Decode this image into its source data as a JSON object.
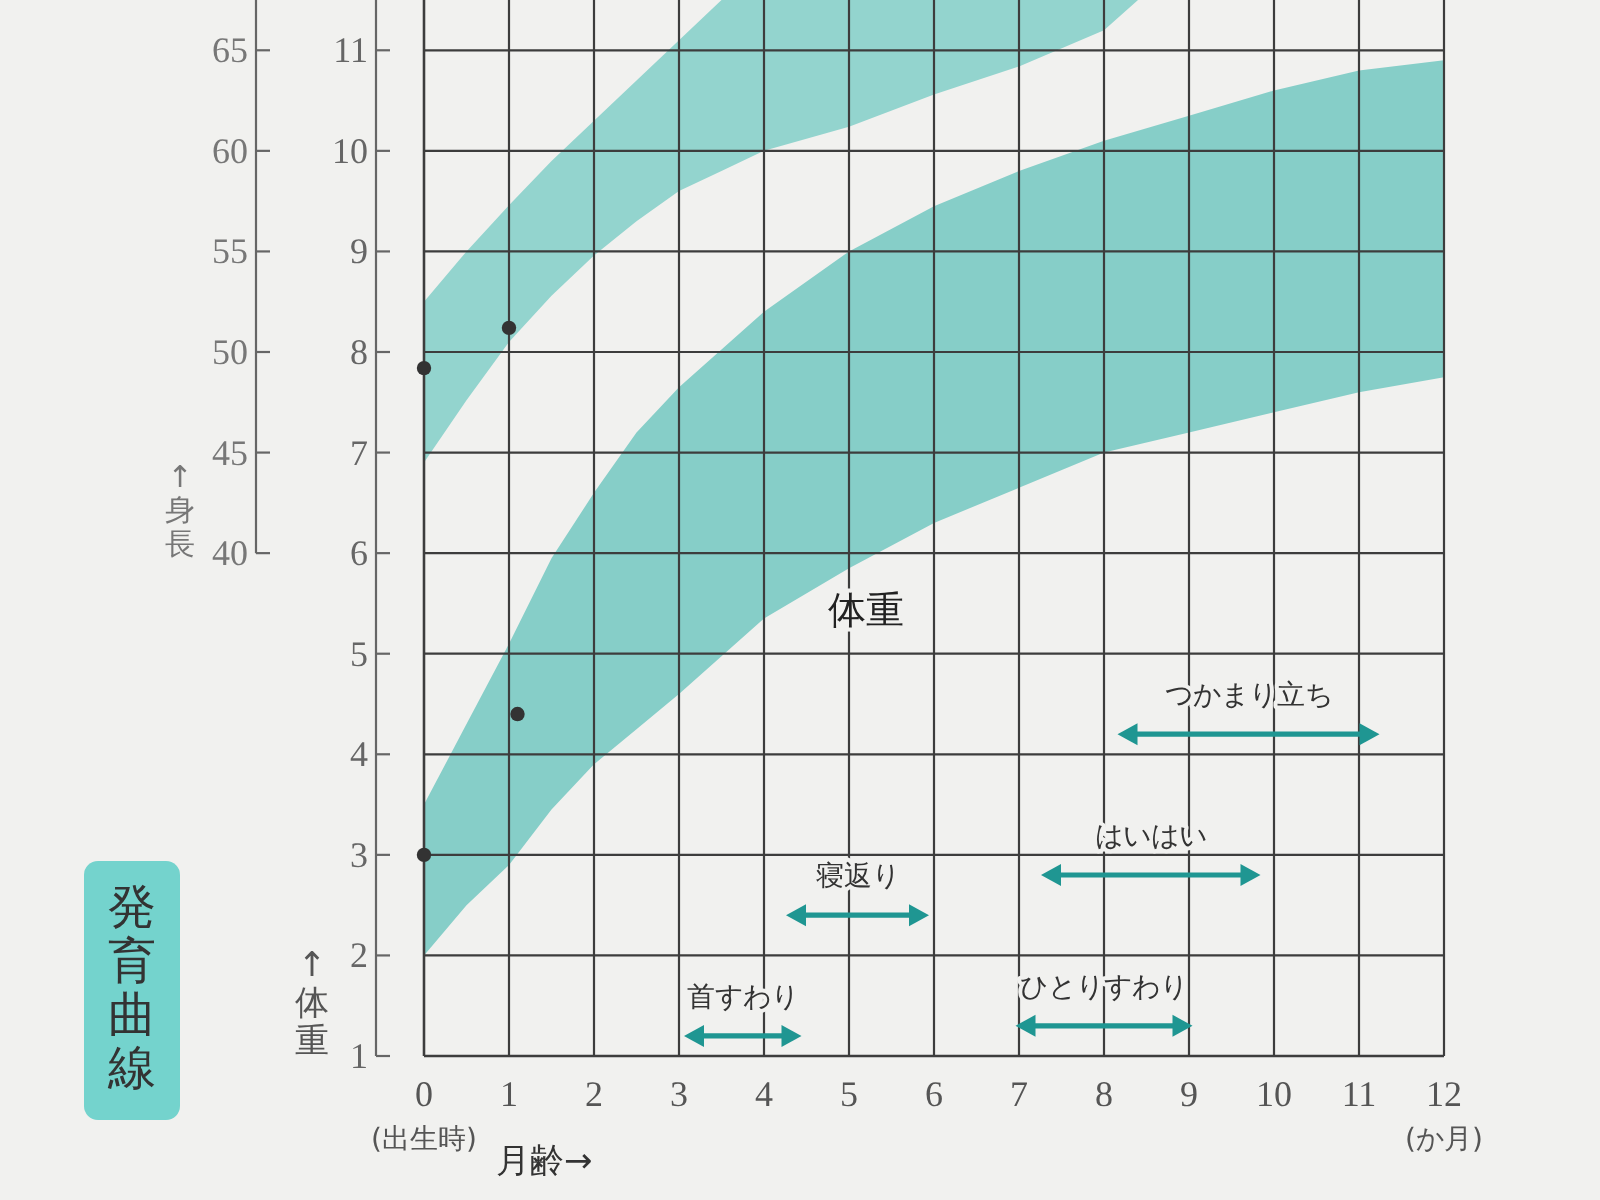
{
  "chart_data": {
    "type": "area",
    "title": "発育曲線",
    "xlabel": "月齢→",
    "ylabel": "↑体重",
    "y2label": "↑身長",
    "xlim": [
      0,
      12
    ],
    "xticks": [
      {
        "value": 0,
        "label": "0\n(出生時)"
      },
      1,
      2,
      3,
      4,
      5,
      6,
      7,
      8,
      9,
      10,
      11,
      {
        "value": 12,
        "label": "12\n(か月)"
      }
    ],
    "ylim": [
      1,
      11.5
    ],
    "yticks": [
      1,
      2,
      3,
      4,
      5,
      6,
      7,
      8,
      9,
      10,
      11
    ],
    "y2lim": [
      15,
      67.5
    ],
    "y2ticks": [
      40,
      45,
      50,
      55,
      60,
      65
    ],
    "grid": true,
    "annotations": [
      "体重"
    ],
    "series": [
      {
        "axis": "y2",
        "color": "#93d4ce",
        "x": [
          0,
          0.5,
          1,
          1.5,
          2,
          2.5,
          3,
          3.5,
          4,
          5,
          6,
          7,
          8,
          8.4
        ],
        "values": [
          null,
          null,
          null,
          null,
          null,
          null,
          null,
          null,
          null,
          null,
          null,
          null,
          null,
          null
        ],
        "lower": [
          44.5,
          47.6,
          50.5,
          52.8,
          54.8,
          56.5,
          58,
          59,
          60,
          61.2,
          62.8,
          64.2,
          66,
          67.5
        ],
        "upper": [
          52.5,
          55,
          57.3,
          59.5,
          61.5,
          63.5,
          65.5,
          67.5,
          67.5,
          67.5,
          67.5,
          67.5,
          67.5,
          67.5
        ]
      },
      {
        "color": "#86cec8",
        "x": [
          0,
          0.5,
          1,
          1.5,
          2,
          2.5,
          3,
          4,
          5,
          6,
          7,
          8,
          9,
          10,
          11,
          12
        ],
        "values": [
          null,
          null,
          null,
          null,
          null,
          null,
          null,
          null,
          null,
          null,
          null,
          null,
          null,
          null,
          null,
          null
        ],
        "lower": [
          2.0,
          2.5,
          2.9,
          3.45,
          3.9,
          4.25,
          4.6,
          5.35,
          5.85,
          6.3,
          6.65,
          7.0,
          7.2,
          7.4,
          7.6,
          7.75
        ],
        "upper": [
          3.5,
          4.3,
          5.1,
          5.95,
          6.6,
          7.2,
          7.65,
          8.4,
          9.0,
          9.45,
          9.8,
          10.1,
          10.35,
          10.6,
          10.8,
          10.9
        ]
      },
      {
        "type": "scatter",
        "color": "#333333",
        "marker": "circle",
        "x": [
          0,
          1.1
        ],
        "values": [
          3.0,
          4.4
        ]
      },
      {
        "type": "scatter",
        "axis": "y2",
        "color": "#333333",
        "marker": "circle",
        "x": [
          0,
          1.0
        ],
        "values": [
          49.2,
          51.2
        ]
      },
      {
        "type": "line",
        "name": "首すわり",
        "color": "#1f9692",
        "marker": "triangle",
        "x": [
          3.2,
          4.3
        ],
        "values": [
          1.2,
          1.2
        ]
      },
      {
        "type": "line",
        "name": "寝返り",
        "color": "#1f9692",
        "marker": "triangle",
        "x": [
          4.4,
          5.8
        ],
        "values": [
          2.4,
          2.4
        ]
      },
      {
        "type": "line",
        "name": "ひとりすわり",
        "color": "#1f9692",
        "marker": "triangle",
        "x": [
          7.1,
          8.9
        ],
        "values": [
          1.3,
          1.3
        ]
      },
      {
        "type": "line",
        "name": "はいはい",
        "color": "#1f9692",
        "marker": "triangle",
        "x": [
          7.4,
          9.7
        ],
        "values": [
          2.8,
          2.8
        ]
      },
      {
        "type": "line",
        "name": "つかまり立ち",
        "color": "#1f9692",
        "marker": "triangle",
        "x": [
          8.3,
          11.1
        ],
        "values": [
          4.2,
          4.2
        ]
      }
    ]
  }
}
